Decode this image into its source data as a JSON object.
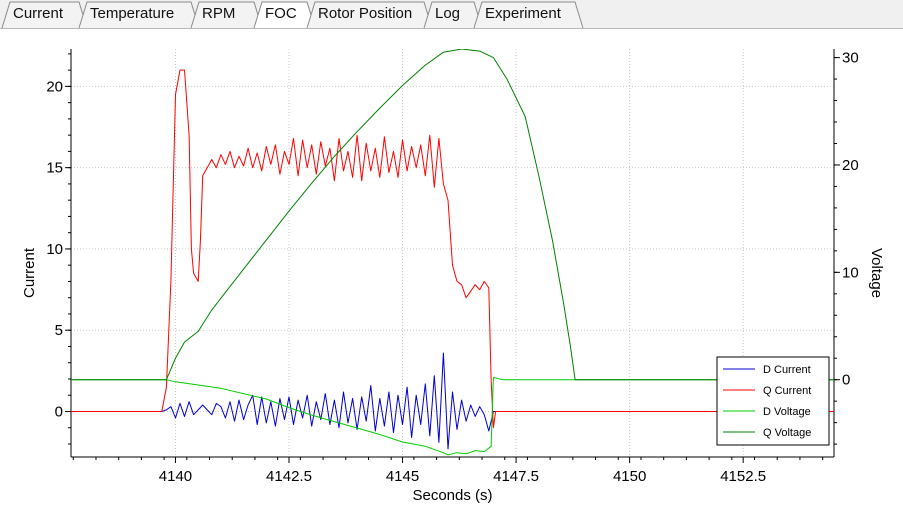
{
  "tabs": [
    {
      "label": "Current",
      "active": false
    },
    {
      "label": "Temperature",
      "active": false
    },
    {
      "label": "RPM",
      "active": false
    },
    {
      "label": "FOC",
      "active": true
    },
    {
      "label": "Rotor Position",
      "active": false
    },
    {
      "label": "Log",
      "active": false
    },
    {
      "label": "Experiment",
      "active": false
    }
  ],
  "chart_data": {
    "type": "line",
    "xlabel": "Seconds (s)",
    "ylabel_left": "Current",
    "ylabel_right": "Voltage",
    "xlim": [
      4137.7,
      4154.5
    ],
    "ylim_left": [
      -2.8,
      22.3
    ],
    "ylim_right": [
      -7.2,
      30.8
    ],
    "x_ticks": [
      4140,
      4142.5,
      4145,
      4147.5,
      4150,
      4152.5
    ],
    "x_tick_labels": [
      "4140",
      "4142.5",
      "4145",
      "4147.5",
      "4150",
      "4152.5"
    ],
    "y_ticks_left": [
      0,
      5,
      10,
      15,
      20
    ],
    "y_tick_labels_left": [
      "0",
      "5",
      "10",
      "15",
      "20"
    ],
    "y_ticks_right": [
      0,
      10,
      20,
      30
    ],
    "y_tick_labels_right": [
      "0",
      "10",
      "20",
      "30"
    ],
    "grid": true,
    "legend_position": "bottom-right",
    "series": [
      {
        "name": "D Current",
        "axis": "left",
        "color": "#0000cc",
        "x": [
          4137.7,
          4139.7,
          4139.8,
          4139.9,
          4140.0,
          4140.1,
          4140.2,
          4140.3,
          4140.4,
          4140.5,
          4140.6,
          4140.7,
          4140.8,
          4140.9,
          4141.0,
          4141.1,
          4141.2,
          4141.3,
          4141.4,
          4141.5,
          4141.6,
          4141.7,
          4141.8,
          4141.9,
          4142.0,
          4142.1,
          4142.2,
          4142.3,
          4142.4,
          4142.5,
          4142.6,
          4142.7,
          4142.8,
          4142.9,
          4143.0,
          4143.1,
          4143.2,
          4143.3,
          4143.4,
          4143.5,
          4143.6,
          4143.7,
          4143.8,
          4143.9,
          4144.0,
          4144.1,
          4144.2,
          4144.3,
          4144.4,
          4144.5,
          4144.6,
          4144.7,
          4144.8,
          4144.9,
          4145.0,
          4145.1,
          4145.2,
          4145.3,
          4145.4,
          4145.5,
          4145.6,
          4145.7,
          4145.8,
          4145.9,
          4146.0,
          4146.1,
          4146.2,
          4146.3,
          4146.4,
          4146.5,
          4146.6,
          4146.7,
          4146.8,
          4146.9,
          4147.0,
          4154.5
        ],
        "y": [
          0,
          0,
          0.1,
          0.3,
          -0.4,
          0.5,
          -0.3,
          0.6,
          -0.2,
          0.1,
          0.4,
          0.1,
          -0.2,
          0.5,
          0.3,
          -0.4,
          0.6,
          -0.6,
          0.7,
          -0.5,
          0.4,
          1.0,
          -0.8,
          0.9,
          -0.7,
          0.6,
          -0.9,
          0.8,
          -0.5,
          0.9,
          -0.8,
          0.7,
          -0.4,
          1.0,
          -0.9,
          0.6,
          -0.5,
          1.1,
          -0.8,
          0.7,
          -1.0,
          1.2,
          -0.7,
          0.8,
          -1.1,
          0.9,
          -0.6,
          1.6,
          -1.2,
          0.8,
          -0.9,
          1.2,
          -1.3,
          1.0,
          -0.8,
          1.5,
          -1.6,
          1.0,
          -0.8,
          1.7,
          -1.5,
          2.2,
          -1.9,
          3.6,
          -2.3,
          1.2,
          -1.1,
          0.7,
          -0.6,
          0.4,
          -0.3,
          0.3,
          -0.2,
          -1.2,
          0,
          0
        ]
      },
      {
        "name": "Q Current",
        "axis": "left",
        "color": "#ff0000",
        "x": [
          4137.7,
          4139.7,
          4139.8,
          4139.9,
          4140.0,
          4140.1,
          4140.2,
          4140.3,
          4140.35,
          4140.4,
          4140.5,
          4140.55,
          4140.6,
          4140.7,
          4140.8,
          4140.9,
          4141.0,
          4141.1,
          4141.2,
          4141.3,
          4141.4,
          4141.5,
          4141.6,
          4141.7,
          4141.8,
          4141.9,
          4142.0,
          4142.1,
          4142.2,
          4142.3,
          4142.4,
          4142.5,
          4142.6,
          4142.7,
          4142.8,
          4142.9,
          4143.0,
          4143.1,
          4143.2,
          4143.3,
          4143.4,
          4143.5,
          4143.6,
          4143.7,
          4143.8,
          4143.9,
          4144.0,
          4144.1,
          4144.2,
          4144.3,
          4144.4,
          4144.5,
          4144.6,
          4144.7,
          4144.8,
          4144.9,
          4145.0,
          4145.1,
          4145.2,
          4145.3,
          4145.4,
          4145.5,
          4145.6,
          4145.7,
          4145.8,
          4145.9,
          4146.0,
          4146.1,
          4146.2,
          4146.3,
          4146.4,
          4146.5,
          4146.6,
          4146.7,
          4146.8,
          4146.9,
          4146.95,
          4147.0,
          4147.05,
          4154.5
        ],
        "y": [
          0,
          0,
          1.5,
          8.0,
          19.5,
          21.0,
          21.0,
          17.0,
          10.0,
          8.5,
          8.0,
          10.5,
          14.5,
          15.0,
          15.5,
          15.0,
          15.8,
          15.2,
          16.0,
          15.0,
          15.7,
          15.1,
          16.2,
          15.0,
          15.9,
          14.8,
          16.3,
          15.2,
          16.4,
          14.6,
          16.0,
          15.2,
          16.8,
          14.5,
          16.7,
          15.0,
          16.4,
          14.6,
          16.6,
          15.1,
          16.2,
          14.2,
          16.8,
          14.8,
          16.0,
          14.4,
          17.0,
          14.2,
          16.5,
          14.8,
          16.2,
          14.4,
          16.9,
          14.7,
          16.0,
          14.4,
          16.7,
          14.8,
          16.3,
          15.0,
          16.4,
          14.5,
          17.0,
          13.8,
          16.8,
          14.0,
          13.0,
          9.0,
          8.0,
          7.8,
          7.0,
          7.4,
          7.8,
          7.5,
          8.0,
          7.6,
          2.0,
          -1.0,
          0,
          0
        ]
      },
      {
        "name": "D Voltage",
        "axis": "right",
        "color": "#00cc00",
        "x": [
          4137.7,
          4139.8,
          4140.0,
          4141.0,
          4142.0,
          4142.5,
          4143.0,
          4143.5,
          4144.0,
          4144.5,
          4145.0,
          4145.5,
          4145.9,
          4146.0,
          4146.2,
          4146.4,
          4146.6,
          4146.8,
          4146.95,
          4147.0,
          4147.2,
          4148.8,
          4154.5
        ],
        "y": [
          0,
          0,
          -0.2,
          -0.8,
          -1.8,
          -2.6,
          -3.3,
          -3.9,
          -4.5,
          -5.1,
          -5.8,
          -6.2,
          -6.8,
          -7.0,
          -6.8,
          -6.9,
          -6.6,
          -6.7,
          -6.2,
          0.2,
          0,
          0,
          0
        ]
      },
      {
        "name": "Q Voltage",
        "axis": "right",
        "color": "#008000",
        "x": [
          4137.7,
          4139.8,
          4140.0,
          4140.2,
          4140.5,
          4140.8,
          4141.5,
          4142.0,
          4142.5,
          4143.0,
          4143.5,
          4144.0,
          4144.5,
          4145.0,
          4145.5,
          4145.9,
          4146.3,
          4146.7,
          4147.0,
          4147.3,
          4147.7,
          4148.0,
          4148.3,
          4148.55,
          4148.7,
          4148.8,
          4154.5
        ],
        "y": [
          0,
          0,
          2.0,
          3.5,
          4.5,
          6.5,
          10.3,
          13.0,
          15.7,
          18.3,
          20.8,
          23.1,
          25.3,
          27.4,
          29.3,
          30.5,
          30.8,
          30.6,
          30.0,
          28.0,
          24.5,
          19.0,
          13.0,
          7.0,
          3.0,
          0,
          0
        ]
      }
    ]
  }
}
